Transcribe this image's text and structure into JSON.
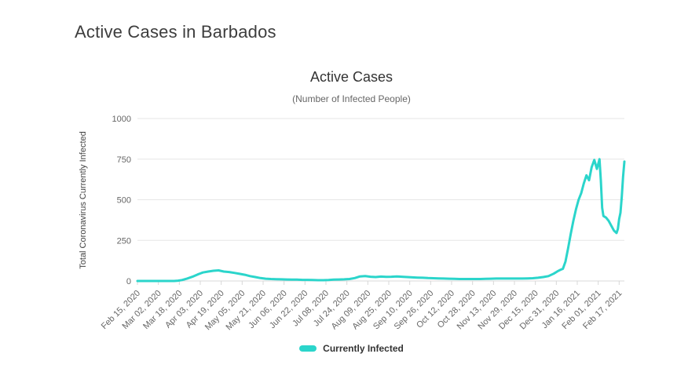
{
  "page": {
    "heading": "Active Cases in Barbados"
  },
  "chart": {
    "line_color": "#2BD5CB",
    "grid_color": "#E6E6E6",
    "axis_line_color": "#D8D8D8",
    "tick_label_color": "#666666"
  },
  "chart_data": {
    "type": "line",
    "title": "Active Cases",
    "subtitle": "(Number of Infected People)",
    "xlabel": "",
    "ylabel": "Total Coronavirus Currently Infected",
    "ylim": [
      0,
      1000
    ],
    "yticks": [
      0,
      250,
      500,
      750,
      1000
    ],
    "legend": [
      "Currently Infected"
    ],
    "legend_position": "bottom",
    "grid": "horizontal",
    "x_ticks": [
      {
        "label": "Feb 15, 2020",
        "date": "2020-02-15"
      },
      {
        "label": "Mar 02, 2020",
        "date": "2020-03-02"
      },
      {
        "label": "Mar 18, 2020",
        "date": "2020-03-18"
      },
      {
        "label": "Apr 03, 2020",
        "date": "2020-04-03"
      },
      {
        "label": "Apr 19, 2020",
        "date": "2020-04-19"
      },
      {
        "label": "May 05, 2020",
        "date": "2020-05-05"
      },
      {
        "label": "May 21, 2020",
        "date": "2020-05-21"
      },
      {
        "label": "Jun 06, 2020",
        "date": "2020-06-06"
      },
      {
        "label": "Jun 22, 2020",
        "date": "2020-06-22"
      },
      {
        "label": "Jul 08, 2020",
        "date": "2020-07-08"
      },
      {
        "label": "Jul 24, 2020",
        "date": "2020-07-24"
      },
      {
        "label": "Aug 09, 2020",
        "date": "2020-08-09"
      },
      {
        "label": "Aug 25, 2020",
        "date": "2020-08-25"
      },
      {
        "label": "Sep 10, 2020",
        "date": "2020-09-10"
      },
      {
        "label": "Sep 26, 2020",
        "date": "2020-09-26"
      },
      {
        "label": "Oct 12, 2020",
        "date": "2020-10-12"
      },
      {
        "label": "Oct 28, 2020",
        "date": "2020-10-28"
      },
      {
        "label": "Nov 13, 2020",
        "date": "2020-11-13"
      },
      {
        "label": "Nov 29, 2020",
        "date": "2020-11-29"
      },
      {
        "label": "Dec 15, 2020",
        "date": "2020-12-15"
      },
      {
        "label": "Dec 31, 2020",
        "date": "2020-12-31"
      },
      {
        "label": "Jan 16, 2021",
        "date": "2021-01-16"
      },
      {
        "label": "Feb 01, 2021",
        "date": "2021-02-01"
      },
      {
        "label": "Feb 17, 2021",
        "date": "2021-02-17"
      }
    ],
    "series_name": "Currently Infected",
    "dates": [
      "2020-02-15",
      "2020-02-22",
      "2020-03-01",
      "2020-03-08",
      "2020-03-14",
      "2020-03-17",
      "2020-03-20",
      "2020-03-24",
      "2020-03-28",
      "2020-04-01",
      "2020-04-05",
      "2020-04-09",
      "2020-04-13",
      "2020-04-17",
      "2020-04-21",
      "2020-04-25",
      "2020-04-29",
      "2020-05-03",
      "2020-05-07",
      "2020-05-11",
      "2020-05-15",
      "2020-05-19",
      "2020-05-23",
      "2020-05-27",
      "2020-05-31",
      "2020-06-04",
      "2020-06-08",
      "2020-06-12",
      "2020-06-16",
      "2020-06-20",
      "2020-06-24",
      "2020-06-28",
      "2020-07-02",
      "2020-07-06",
      "2020-07-10",
      "2020-07-14",
      "2020-07-18",
      "2020-07-22",
      "2020-07-26",
      "2020-07-30",
      "2020-08-03",
      "2020-08-07",
      "2020-08-11",
      "2020-08-15",
      "2020-08-19",
      "2020-08-23",
      "2020-08-27",
      "2020-08-31",
      "2020-09-04",
      "2020-09-08",
      "2020-09-12",
      "2020-09-16",
      "2020-09-20",
      "2020-09-24",
      "2020-09-28",
      "2020-10-02",
      "2020-10-06",
      "2020-10-10",
      "2020-10-14",
      "2020-10-18",
      "2020-10-22",
      "2020-10-26",
      "2020-10-30",
      "2020-11-03",
      "2020-11-07",
      "2020-11-11",
      "2020-11-15",
      "2020-11-19",
      "2020-11-23",
      "2020-11-27",
      "2020-12-01",
      "2020-12-05",
      "2020-12-09",
      "2020-12-13",
      "2020-12-17",
      "2020-12-21",
      "2020-12-25",
      "2020-12-29",
      "2021-01-01",
      "2021-01-03",
      "2021-01-05",
      "2021-01-07",
      "2021-01-09",
      "2021-01-11",
      "2021-01-13",
      "2021-01-15",
      "2021-01-17",
      "2021-01-19",
      "2021-01-21",
      "2021-01-23",
      "2021-01-25",
      "2021-01-27",
      "2021-01-29",
      "2021-01-31",
      "2021-02-02",
      "2021-02-03",
      "2021-02-04",
      "2021-02-05",
      "2021-02-07",
      "2021-02-09",
      "2021-02-11",
      "2021-02-13",
      "2021-02-15",
      "2021-02-16",
      "2021-02-17",
      "2021-02-18",
      "2021-02-19",
      "2021-02-20",
      "2021-02-21"
    ],
    "values": [
      0,
      0,
      0,
      0,
      0,
      2,
      6,
      15,
      26,
      40,
      52,
      58,
      63,
      65,
      58,
      55,
      50,
      44,
      38,
      30,
      24,
      18,
      14,
      12,
      11,
      10,
      9,
      8,
      8,
      7,
      7,
      6,
      5,
      5,
      6,
      8,
      9,
      10,
      12,
      18,
      28,
      30,
      26,
      24,
      27,
      25,
      26,
      28,
      26,
      24,
      22,
      21,
      20,
      18,
      17,
      16,
      15,
      14,
      13,
      12,
      12,
      12,
      12,
      12,
      13,
      14,
      15,
      15,
      15,
      15,
      15,
      15,
      16,
      17,
      20,
      24,
      30,
      45,
      60,
      68,
      75,
      120,
      200,
      290,
      370,
      440,
      500,
      540,
      600,
      650,
      620,
      700,
      745,
      690,
      750,
      620,
      450,
      400,
      390,
      370,
      340,
      310,
      295,
      320,
      380,
      420,
      520,
      640,
      735
    ]
  }
}
